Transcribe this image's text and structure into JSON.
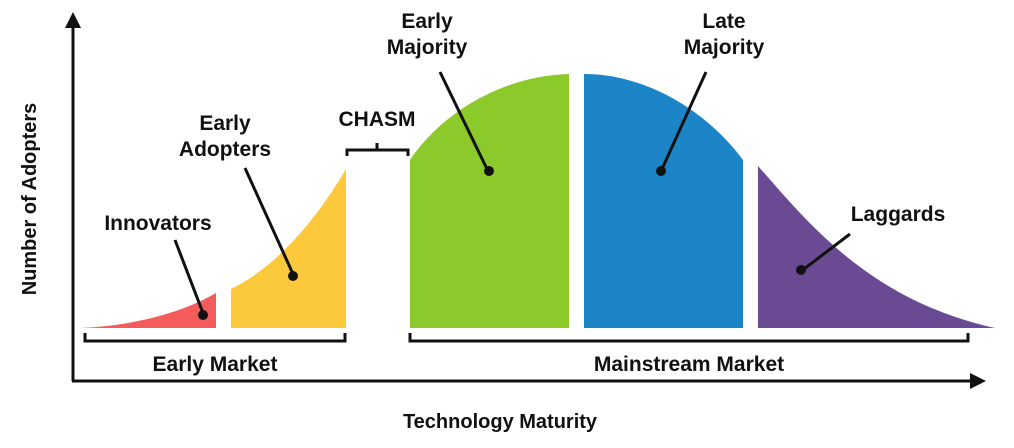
{
  "axes": {
    "x_title": "Technology Maturity",
    "y_title": "Number of Adopters"
  },
  "segments": {
    "innovators": {
      "label": "Innovators",
      "color": "#f45b5b"
    },
    "early_adopters": {
      "label_line1": "Early",
      "label_line2": "Adopters",
      "color": "#fcc93c"
    },
    "early_majority": {
      "label_line1": "Early",
      "label_line2": "Majority",
      "color": "#8cc92a"
    },
    "late_majority": {
      "label_line1": "Late",
      "label_line2": "Majority",
      "color": "#1c85c8"
    },
    "laggards": {
      "label": "Laggards",
      "color": "#6a4b93"
    }
  },
  "chasm": {
    "label": "CHASM"
  },
  "markets": {
    "early": "Early Market",
    "mainstream": "Mainstream Market"
  }
}
